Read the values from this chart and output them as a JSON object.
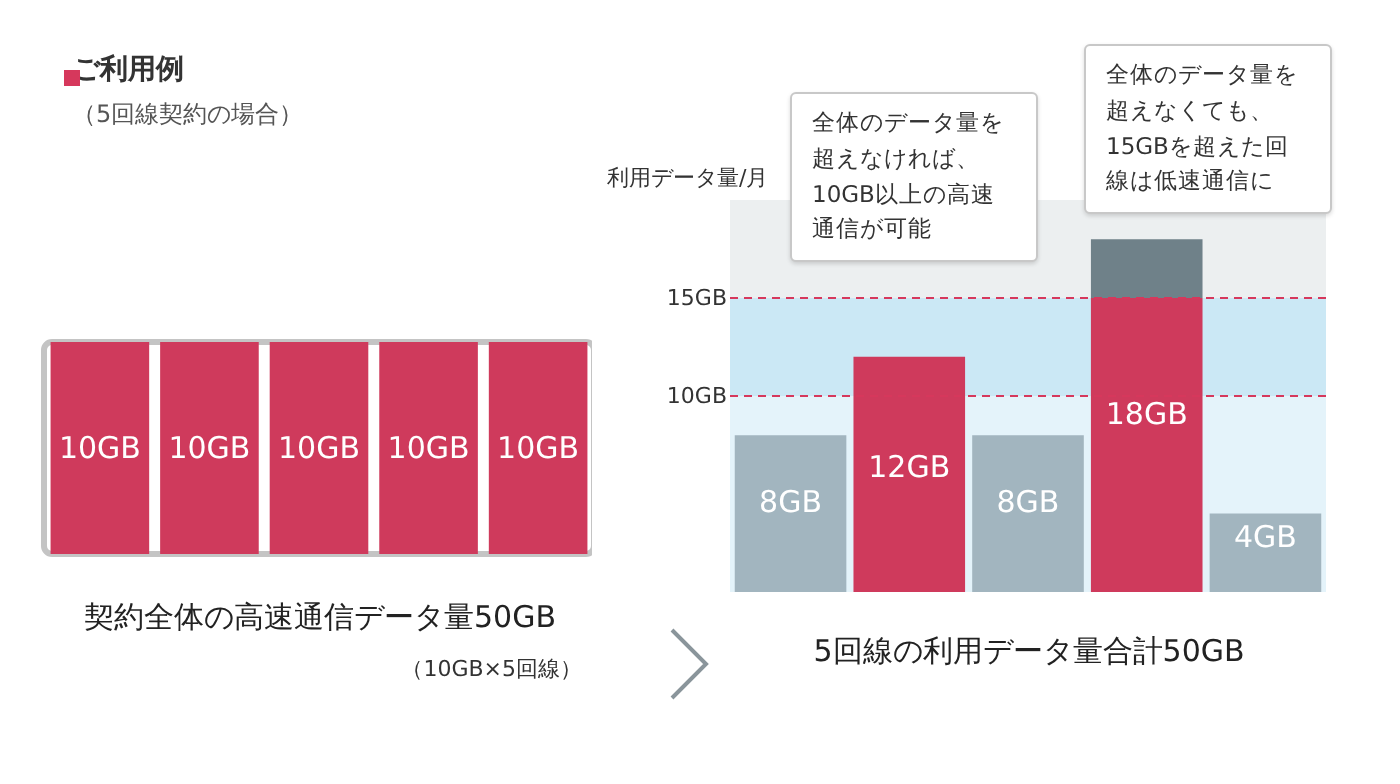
{
  "chart_data": [
    {
      "type": "bar",
      "title": "ご利用例",
      "subtitle": "（5回線契約の場合）",
      "categories": [
        null,
        null,
        null,
        null,
        null
      ],
      "values": [
        10,
        10,
        10,
        10,
        10
      ],
      "colors": [
        "#cf3a5c",
        "#cf3a5c",
        "#cf3a5c",
        "#cf3a5c",
        "#cf3a5c"
      ],
      "value_labels": [
        "10GB",
        "10GB",
        "10GB",
        "10GB",
        "10GB"
      ],
      "xlabel": "契約全体の高速通信データ量50GB",
      "annotations": [
        "（10GB×5回線）"
      ],
      "tick_labels": false
    },
    {
      "type": "bar",
      "categories": [
        null,
        null,
        null,
        null,
        null
      ],
      "stacked": true,
      "series": [
        {
          "colors": [
            "#a2b5bf",
            "#cf3a5c",
            "#a2b5bf",
            "#cf3a5c",
            "#a2b5bf"
          ],
          "values": [
            8,
            12,
            8,
            15,
            4
          ]
        },
        {
          "color": "#6f8189",
          "values": [
            null,
            null,
            null,
            3,
            null
          ]
        }
      ],
      "totals": [
        "8GB",
        "12GB",
        "8GB",
        "18GB",
        "4GB"
      ],
      "ylim": [
        0,
        20
      ],
      "yticks": [
        {
          "value": 10,
          "label": "10GB"
        },
        {
          "value": 15,
          "label": "15GB"
        }
      ],
      "ylabel": "利用データ量/月",
      "xlabel": "5回線の利用データ量合計50GB",
      "bands": [
        {
          "axis": "y",
          "from": 0,
          "to": 10,
          "color": "#e4f3fa"
        },
        {
          "axis": "y",
          "from": 10,
          "to": 15,
          "color": "#cbe8f5"
        }
      ],
      "ref_lines": [
        {
          "axis": "y",
          "value": 10,
          "color": "#d6385c",
          "line_style": "dashed"
        },
        {
          "axis": "y",
          "value": 15,
          "color": "#d6385c",
          "line_style": "dashed"
        }
      ],
      "annotations": [
        "全体のデータ量を超えなければ、10GB以上の高速通信が可能",
        "全体のデータ量を超えなくても、15GBを超えた回線は低速通信に"
      ],
      "tick_labels": "y"
    }
  ]
}
